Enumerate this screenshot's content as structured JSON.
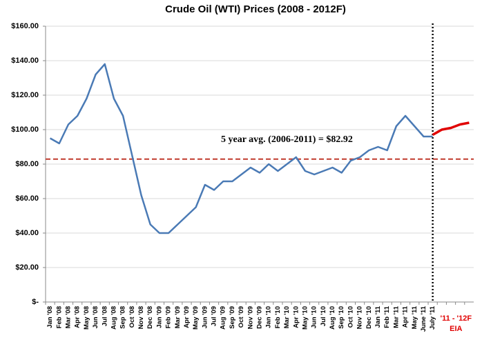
{
  "chart_data": {
    "type": "line",
    "title": "Crude Oil (WTI) Prices (2008 - 2012F)",
    "categories": [
      "Jan '08",
      "Feb '08",
      "Mar '08",
      "Apr '08",
      "May '08",
      "Jun '08",
      "Jul '08",
      "Aug '08",
      "Sep '08",
      "Oct '08",
      "Nov '08",
      "Dec '08",
      "Jan '09",
      "Feb '09",
      "Mar '09",
      "Apr '09",
      "May '09",
      "Jun '09",
      "Jul '09",
      "Aug '09",
      "Sep '09",
      "Oct '09",
      "Nov '09",
      "Dec '09",
      "Jan '10",
      "Feb '10",
      "Mar '10",
      "Apr '10",
      "May '10",
      "Jun '10",
      "Jul '10",
      "Aug '10",
      "Sep '10",
      "Oct '10",
      "Nov '10",
      "Dec '10",
      "Jan '11",
      "Feb '11",
      "Mar '11",
      "Apr '11",
      "May '11",
      "June '11",
      "July '11",
      null,
      null,
      null,
      null
    ],
    "series": [
      {
        "color": "#4a7ab5",
        "values": [
          95,
          92,
          103,
          108,
          118,
          132,
          138,
          118,
          108,
          85,
          62,
          45,
          40,
          40,
          45,
          50,
          55,
          68,
          65,
          70,
          70,
          74,
          78,
          75,
          80,
          76,
          80,
          84,
          76,
          74,
          76,
          78,
          75,
          82,
          84,
          88,
          90,
          88,
          102,
          108,
          102,
          96,
          96,
          null,
          null,
          null,
          null
        ]
      },
      {
        "color": "#e00000",
        "values": [
          null,
          null,
          null,
          null,
          null,
          null,
          null,
          null,
          null,
          null,
          null,
          null,
          null,
          null,
          null,
          null,
          null,
          null,
          null,
          null,
          null,
          null,
          null,
          null,
          null,
          null,
          null,
          null,
          null,
          null,
          null,
          null,
          null,
          null,
          null,
          null,
          null,
          null,
          null,
          null,
          null,
          null,
          97,
          100,
          101,
          103,
          104
        ]
      }
    ],
    "ylim": [
      0,
      160
    ],
    "yticks": [
      {
        "value": 0,
        "label": "$-"
      },
      {
        "value": 20,
        "label": "$20.00"
      },
      {
        "value": 40,
        "label": "$40.00"
      },
      {
        "value": 60,
        "label": "$60.00"
      },
      {
        "value": 80,
        "label": "$80.00"
      },
      {
        "value": 100,
        "label": "$100.00"
      },
      {
        "value": 120,
        "label": "$120.00"
      },
      {
        "value": 140,
        "label": "$140.00"
      },
      {
        "value": 160,
        "label": "$160.00"
      }
    ],
    "grid": true,
    "reference_line": {
      "value": 82.92,
      "label": "5 year avg. (2006-2011) = $82.92",
      "color": "#c0392b"
    },
    "forecast_label": [
      "'11 - '12F",
      "EIA"
    ]
  }
}
